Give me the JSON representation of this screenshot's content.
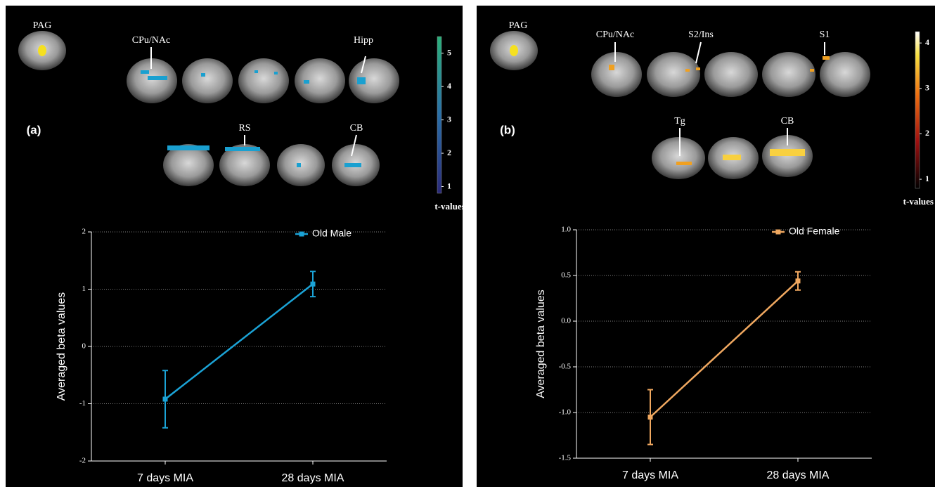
{
  "panels": [
    {
      "label": "(a)",
      "seed": "PAG",
      "regions": [
        "CPu/NAc",
        "Hipp",
        "RS",
        "CB"
      ],
      "colorbar": {
        "title": "t-values",
        "ticks": [
          1,
          2,
          3,
          4,
          5
        ],
        "lim": [
          0.8,
          5.5
        ]
      }
    },
    {
      "label": "(b)",
      "seed": "PAG",
      "regions": [
        "CPu/NAc",
        "S2/Ins",
        "S1",
        "Tg",
        "CB"
      ],
      "colorbar": {
        "title": "t-values",
        "ticks": [
          1,
          2,
          3,
          4
        ],
        "lim": [
          0.8,
          4.25
        ]
      }
    }
  ],
  "chart_data": [
    {
      "type": "line",
      "ylabel": "Averaged beta values",
      "categories": [
        "7 days MIA",
        "28 days MIA"
      ],
      "series": [
        {
          "name": "Old Male",
          "color": "#1ba3d6",
          "values": [
            -0.92,
            1.09
          ],
          "errors": [
            0.5,
            0.22
          ]
        }
      ],
      "ylim": [
        -2,
        2
      ],
      "yticks": [
        -2,
        -1,
        0,
        1,
        2
      ],
      "grid": true
    },
    {
      "type": "line",
      "ylabel": "Averaged beta values",
      "categories": [
        "7 days MIA",
        "28 days MIA"
      ],
      "series": [
        {
          "name": "Old Female",
          "color": "#f0a860",
          "values": [
            -1.05,
            0.44
          ],
          "errors": [
            0.3,
            0.1
          ]
        }
      ],
      "ylim": [
        -1.5,
        1
      ],
      "yticks": [
        -1.5,
        {
          "value": -1,
          "label": "-1.0"
        },
        -0.5,
        {
          "value": 0,
          "label": "0.0"
        },
        0.5,
        {
          "value": 1,
          "label": "1.0"
        }
      ],
      "grid": true
    }
  ]
}
